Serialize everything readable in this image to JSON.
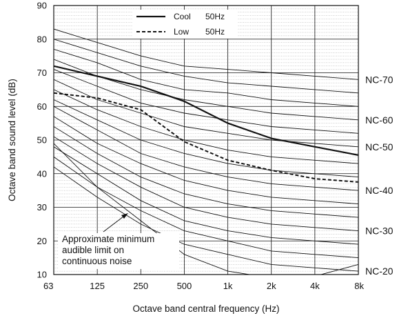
{
  "chart_data": {
    "type": "line",
    "xlabel": "Octave band central frequency (Hz)",
    "ylabel": "Octave band sound level (dB)",
    "x_scale": "log2-octave",
    "categories": [
      "63",
      "125",
      "250",
      "500",
      "1k",
      "2k",
      "4k",
      "8k"
    ],
    "ylim": [
      10,
      90
    ],
    "yticks": [
      "10",
      "20",
      "30",
      "40",
      "50",
      "60",
      "70",
      "80",
      "90"
    ],
    "grid": true,
    "legend_position": "top-center",
    "series": [
      {
        "name": "Cool",
        "freq_label": "50Hz",
        "style": "solid",
        "color": "#111111",
        "values": [
          72,
          69,
          66,
          61.5,
          55,
          50.5,
          48,
          45.5
        ]
      },
      {
        "name": "Low",
        "freq_label": "50Hz",
        "style": "dashed",
        "color": "#111111",
        "values": [
          64,
          62.5,
          59,
          49.5,
          44,
          41,
          38.5,
          37.5
        ]
      }
    ],
    "nc_curves": [
      {
        "label": "NC-70",
        "values": [
          83,
          79,
          75,
          72,
          71,
          70,
          69,
          68
        ]
      },
      {
        "label": "",
        "values": [
          80,
          76,
          72,
          69,
          67,
          66,
          65,
          64
        ]
      },
      {
        "label": "",
        "values": [
          77,
          73,
          68,
          65,
          64,
          62,
          61,
          60
        ]
      },
      {
        "label": "NC-60",
        "values": [
          74,
          69,
          65,
          62,
          60,
          58,
          57,
          56
        ]
      },
      {
        "label": "",
        "values": [
          71,
          66,
          61,
          58,
          56,
          54,
          53,
          52
        ]
      },
      {
        "label": "NC-50",
        "values": [
          68,
          62,
          58,
          54,
          52,
          50,
          49,
          48
        ]
      },
      {
        "label": "",
        "values": [
          65,
          59,
          54,
          50,
          47,
          45,
          44,
          43
        ]
      },
      {
        "label": "",
        "values": [
          62,
          56,
          50,
          46,
          43,
          41,
          40,
          39
        ]
      },
      {
        "label": "NC-40",
        "values": [
          60,
          53,
          46,
          42,
          39,
          37,
          36,
          35
        ]
      },
      {
        "label": "",
        "values": [
          57,
          49,
          43,
          38,
          35,
          33,
          32,
          31
        ]
      },
      {
        "label": "",
        "values": [
          54,
          46,
          39,
          34,
          31,
          29,
          28,
          27
        ]
      },
      {
        "label": "NC-30",
        "values": [
          51,
          43,
          36,
          30,
          27,
          25,
          24,
          23
        ]
      },
      {
        "label": "",
        "values": [
          48,
          40,
          32,
          26,
          23,
          21,
          20,
          19
        ]
      },
      {
        "label": "",
        "values": [
          45,
          36,
          29,
          23,
          20,
          17,
          16,
          15
        ]
      },
      {
        "label": "NC-20",
        "values": [
          42,
          33,
          25,
          19,
          16,
          13,
          12,
          11
        ]
      }
    ],
    "audible_limit": {
      "annotation": [
        "Approximate minimum",
        "audible limit on",
        "continuous noise"
      ],
      "values": [
        49,
        36,
        26,
        16,
        11,
        9,
        9.5,
        13
      ]
    }
  }
}
